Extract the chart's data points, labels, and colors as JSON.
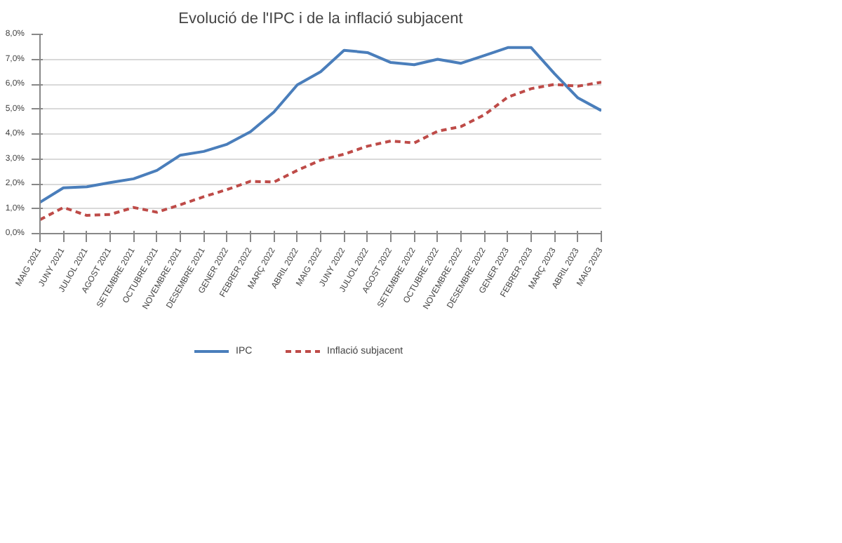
{
  "chart_data": {
    "type": "line",
    "title": "Evolució de l'IPC i de la inflació subjacent",
    "categories": [
      "MAIG 2021",
      "JUNY 2021",
      "JULIOL 2021",
      "AGOST 2021",
      "SETEMBRE 2021",
      "OCTUBRE 2021",
      "NOVEMBRE 2021",
      "DESEMBRE 2021",
      "GENER 2022",
      "FEBRER 2022",
      "MARÇ 2022",
      "ABRIL 2022",
      "MAIG 2022",
      "JUNY 2022",
      "JULIOL 2022",
      "AGOST 2022",
      "SETEMBRE 2022",
      "OCTUBRE 2022",
      "NOVEMBRE 2022",
      "DESEMBRE 2022",
      "GENER 2023",
      "FEBRER 2023",
      "MARÇ 2023",
      "ABRIL 2023",
      "MAIG 2023"
    ],
    "series": [
      {
        "name": "IPC",
        "color": "#4a7ebb",
        "line_style": "solid",
        "values": [
          1.26,
          1.84,
          1.88,
          2.05,
          2.2,
          2.54,
          3.15,
          3.3,
          3.59,
          4.09,
          4.88,
          5.97,
          6.5,
          7.36,
          7.27,
          6.87,
          6.78,
          7.0,
          6.84,
          7.15,
          7.47,
          7.47,
          6.42,
          5.45,
          4.94
        ]
      },
      {
        "name": "Inflació subjacent",
        "color": "#be4b48",
        "line_style": "dashed",
        "values": [
          0.56,
          1.05,
          0.73,
          0.77,
          1.05,
          0.86,
          1.16,
          1.48,
          1.77,
          2.1,
          2.07,
          2.54,
          2.95,
          3.19,
          3.51,
          3.72,
          3.64,
          4.11,
          4.3,
          4.77,
          5.48,
          5.82,
          5.99,
          5.92,
          6.08
        ]
      }
    ],
    "ylim": [
      0,
      8
    ],
    "yticks": [
      {
        "value": 0,
        "label": "0,0%"
      },
      {
        "value": 1,
        "label": "1,0%"
      },
      {
        "value": 2,
        "label": "2,0%"
      },
      {
        "value": 3,
        "label": "3,0%"
      },
      {
        "value": 4,
        "label": "4,0%"
      },
      {
        "value": 5,
        "label": "5,0%"
      },
      {
        "value": 6,
        "label": "6,0%"
      },
      {
        "value": 7,
        "label": "7,0%"
      },
      {
        "value": 8,
        "label": "8,0%"
      }
    ],
    "grid": "y",
    "legend": "bottom",
    "marker": "none"
  }
}
